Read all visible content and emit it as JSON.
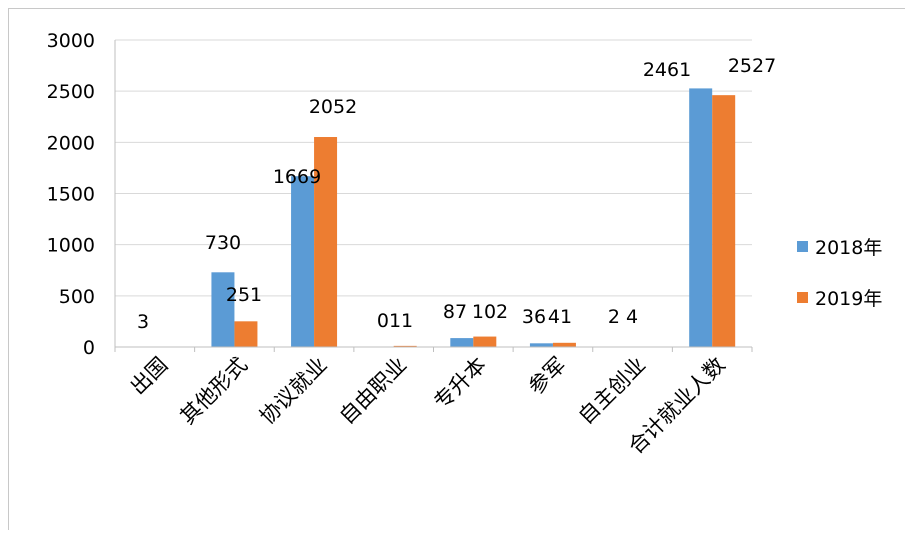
{
  "chart_data": {
    "type": "bar",
    "categories": [
      "出国",
      "其他形式",
      "协议就业",
      "自由职业",
      "专升本",
      "参军",
      "自主创业",
      "合计就业人数"
    ],
    "series": [
      {
        "name": "2018年",
        "values": [
          3,
          730,
          1669,
          0,
          87,
          36,
          2,
          2527
        ],
        "color": "#5b9bd5"
      },
      {
        "name": "2019年",
        "values": [
          0,
          251,
          2052,
          11,
          102,
          41,
          4,
          2461
        ],
        "color": "#ed7d31"
      }
    ],
    "data_labels": [
      "3",
      "730",
      "251",
      "1669",
      "2052",
      "011",
      "87",
      "102",
      "36",
      "41",
      "2 4",
      "2461",
      "2527"
    ],
    "yticks": [
      0,
      500,
      1000,
      1500,
      2000,
      2500,
      3000
    ],
    "ylim": [
      0,
      3000
    ],
    "grid": true,
    "legend_position": "right"
  }
}
